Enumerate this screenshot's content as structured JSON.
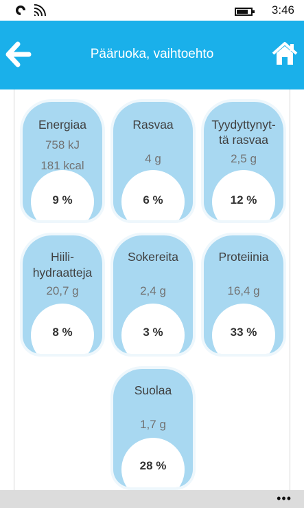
{
  "status_bar": {
    "time": "3:46",
    "icons": [
      "notification-icon",
      "wifi-icon",
      "battery-icon"
    ]
  },
  "header": {
    "title": "Pääruoka, vaihtoehto",
    "back_icon": "arrow-left-icon",
    "home_icon": "home-icon",
    "background": "#1ab0ea"
  },
  "tiles": [
    {
      "label": "Energiaa",
      "value1": "758 kJ",
      "value2": "181 kcal",
      "percent": "9 %"
    },
    {
      "label": "Rasvaa",
      "value1": "4 g",
      "percent": "6 %"
    },
    {
      "label1": "Tyydyttynyt-",
      "label2": "tä rasvaa",
      "value1": "2,5 g",
      "percent": "12 %"
    },
    {
      "label1": "Hiili-",
      "label2": "hydraatteja",
      "value1": "20,7 g",
      "percent": "8 %"
    },
    {
      "label": "Sokereita",
      "value1": "2,4 g",
      "percent": "3 %"
    },
    {
      "label": "Proteiinia",
      "value1": "16,4 g",
      "percent": "33 %"
    },
    {
      "label": "Suolaa",
      "value1": "1,7 g",
      "percent": "28 %"
    }
  ],
  "colors": {
    "tile": "#a8d8f1",
    "accent": "#1ab0ea"
  },
  "app_bar": {
    "more_label": "•••"
  }
}
